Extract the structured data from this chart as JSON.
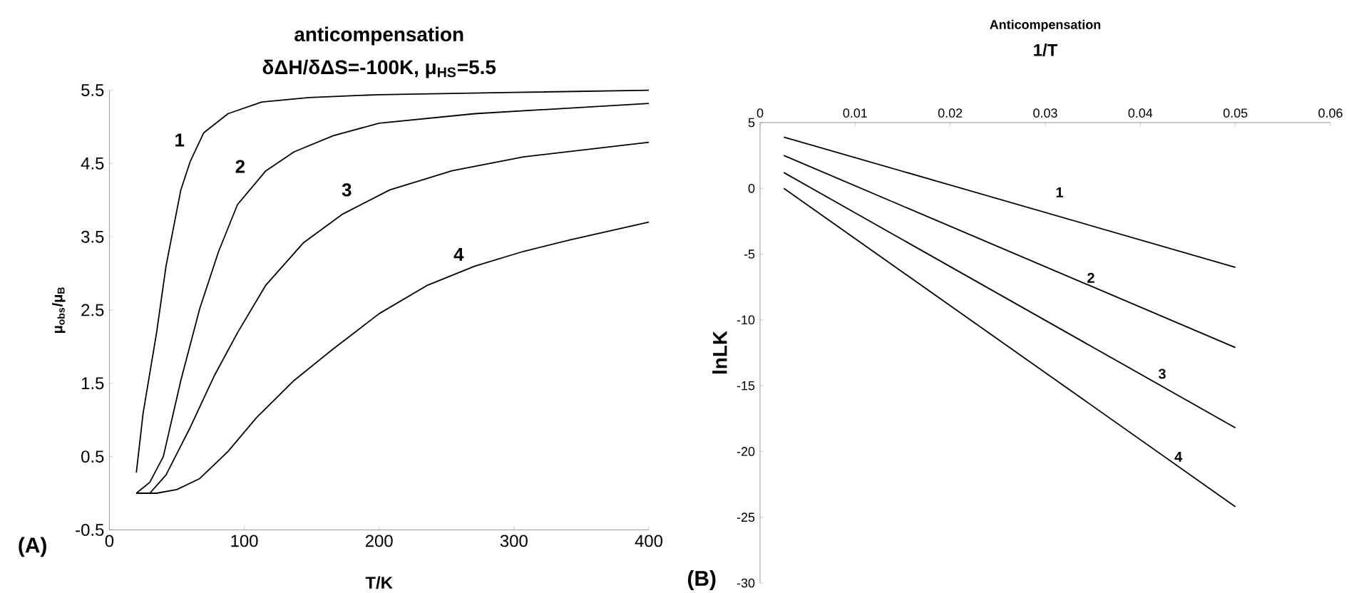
{
  "chart_data": [
    {
      "type": "line",
      "title": "anticompensation",
      "subtitle": "δΔH/δΔS=-100K, μ$_{HS}$=5.5",
      "xlabel": "T/K",
      "ylabel": "μ$_{obs}$/μ$_{B}$",
      "xlim": [
        0,
        400
      ],
      "xticks": [
        0,
        100,
        200,
        300,
        400
      ],
      "ylim": [
        -0.5,
        5.5
      ],
      "yticks": [
        -0.5,
        0.5,
        1.5,
        2.5,
        3.5,
        4.5,
        5.5
      ],
      "series": [
        {
          "color": "#000000",
          "x": [
            20,
            25,
            35,
            42,
            53,
            60,
            70,
            88,
            113,
            148,
            200,
            300,
            400
          ],
          "values": [
            0.28,
            1.09,
            2.19,
            3.1,
            4.14,
            4.53,
            4.92,
            5.18,
            5.34,
            5.4,
            5.44,
            5.47,
            5.5
          ]
        },
        {
          "color": "#000000",
          "x": [
            20,
            30,
            40,
            53,
            67,
            81,
            95,
            116,
            137,
            166,
            200,
            271,
            400
          ],
          "values": [
            0,
            0.15,
            0.5,
            1.54,
            2.52,
            3.3,
            3.94,
            4.4,
            4.66,
            4.88,
            5.05,
            5.18,
            5.32
          ]
        },
        {
          "color": "#000000",
          "x": [
            20,
            30,
            42,
            60,
            78,
            95,
            116,
            144,
            173,
            208,
            254,
            307,
            400
          ],
          "values": [
            0,
            0,
            0.25,
            0.9,
            1.61,
            2.19,
            2.84,
            3.42,
            3.81,
            4.14,
            4.4,
            4.59,
            4.79
          ]
        },
        {
          "color": "#000000",
          "x": [
            20,
            35,
            50,
            67,
            88,
            109,
            137,
            166,
            200,
            236,
            271,
            307,
            342,
            400
          ],
          "values": [
            0,
            0,
            0.05,
            0.2,
            0.57,
            1.03,
            1.54,
            1.97,
            2.45,
            2.84,
            3.1,
            3.3,
            3.46,
            3.7
          ]
        }
      ],
      "annotations": [
        {
          "text": "1",
          "x": 52,
          "y": 4.82
        },
        {
          "text": "2",
          "x": 97,
          "y": 4.46
        },
        {
          "text": "3",
          "x": 176,
          "y": 4.14
        },
        {
          "text": "4",
          "x": 259,
          "y": 3.26
        },
        "(A)"
      ]
    },
    {
      "type": "line",
      "title": "Anticompensation",
      "xlabel": "1/T",
      "ylabel": "lnLK",
      "xlim": [
        0,
        0.06
      ],
      "xticks": [
        0,
        0.01,
        0.02,
        0.03,
        0.04,
        0.05,
        0.06
      ],
      "ylim": [
        -30,
        5
      ],
      "yticks": [
        -30,
        -25,
        -20,
        -15,
        -10,
        -5,
        0,
        5
      ],
      "series": [
        {
          "color": "#000000",
          "x": [
            0.0025,
            0.05
          ],
          "values": [
            3.9,
            -6.0
          ]
        },
        {
          "color": "#000000",
          "x": [
            0.0025,
            0.05
          ],
          "values": [
            2.5,
            -12.1
          ]
        },
        {
          "color": "#000000",
          "x": [
            0.0025,
            0.05
          ],
          "values": [
            1.2,
            -18.2
          ]
        },
        {
          "color": "#000000",
          "x": [
            0.0025,
            0.05
          ],
          "values": [
            0,
            -24.2
          ]
        }
      ],
      "annotations": [
        {
          "text": "1",
          "x": 0.0315,
          "y": -0.3
        },
        {
          "text": "2",
          "x": 0.0348,
          "y": -6.8
        },
        {
          "text": "3",
          "x": 0.0423,
          "y": -14.1
        },
        {
          "text": "4",
          "x": 0.044,
          "y": -20.4
        },
        "(B)"
      ]
    }
  ]
}
